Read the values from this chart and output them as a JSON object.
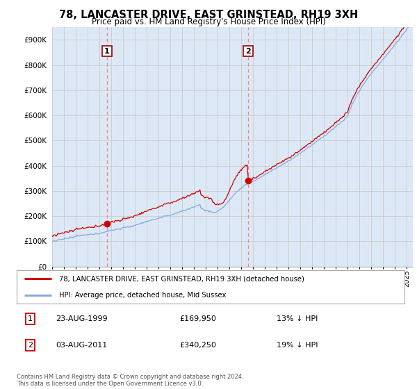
{
  "title": "78, LANCASTER DRIVE, EAST GRINSTEAD, RH19 3XH",
  "subtitle": "Price paid vs. HM Land Registry's House Price Index (HPI)",
  "ylim": [
    0,
    950000
  ],
  "yticks": [
    0,
    100000,
    200000,
    300000,
    400000,
    500000,
    600000,
    700000,
    800000,
    900000
  ],
  "ytick_labels": [
    "£0",
    "£100K",
    "£200K",
    "£300K",
    "£400K",
    "£500K",
    "£600K",
    "£700K",
    "£800K",
    "£900K"
  ],
  "sale1_date_x": 1999.64,
  "sale1_price": 169950,
  "sale2_date_x": 2011.58,
  "sale2_price": 340250,
  "sale_color": "#cc0000",
  "hpi_color": "#88aadd",
  "fill_color": "#dce8f5",
  "vline_color": "#ee8888",
  "legend_sale_label": "78, LANCASTER DRIVE, EAST GRINSTEAD, RH19 3XH (detached house)",
  "legend_hpi_label": "HPI: Average price, detached house, Mid Sussex",
  "table_row1": [
    "1",
    "23-AUG-1999",
    "£169,950",
    "13% ↓ HPI"
  ],
  "table_row2": [
    "2",
    "03-AUG-2011",
    "£340,250",
    "19% ↓ HPI"
  ],
  "footer": "Contains HM Land Registry data © Crown copyright and database right 2024.\nThis data is licensed under the Open Government Licence v3.0.",
  "bg_color": "#ffffff",
  "grid_color": "#cccccc",
  "xlim_start": 1995,
  "xlim_end": 2025.5
}
